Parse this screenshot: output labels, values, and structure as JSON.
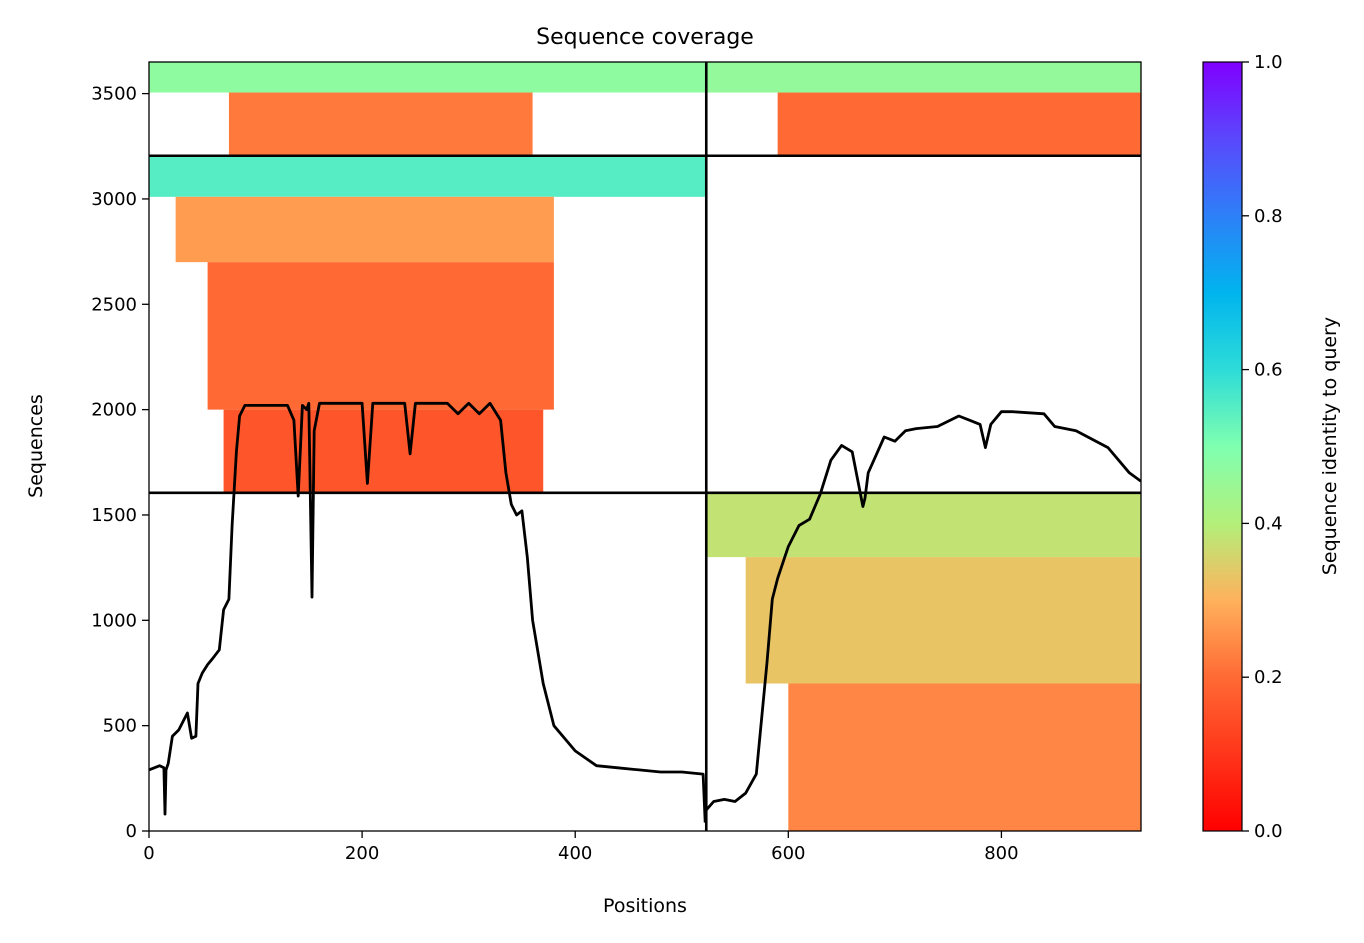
{
  "chart_data": {
    "type": "heatmap",
    "title": "Sequence coverage",
    "xlabel": "Positions",
    "ylabel": "Sequences",
    "xlim": [
      0,
      931
    ],
    "ylim": [
      0,
      3650
    ],
    "xticks": [
      0,
      200,
      400,
      600,
      800
    ],
    "yticks": [
      0,
      500,
      1000,
      1500,
      2000,
      2500,
      3000,
      3500
    ],
    "grid": false,
    "colorbar": {
      "label": "Sequence identity to query",
      "range": [
        0,
        1
      ],
      "ticks": [
        "0.0",
        "0.2",
        "0.4",
        "0.6",
        "0.8",
        "1.0"
      ],
      "colormap": "rainbow_r"
    },
    "chain_boundary_x": 523,
    "group_boundaries_y": [
      1605,
      3205
    ],
    "coverage_blocks": [
      {
        "x": [
          0,
          523
        ],
        "y": [
          3505,
          3650
        ],
        "identity": 0.47
      },
      {
        "x": [
          75,
          360
        ],
        "y": [
          3205,
          3505
        ],
        "identity": 0.22
      },
      {
        "x": [
          0,
          523
        ],
        "y": [
          3010,
          3205
        ],
        "identity": 0.55
      },
      {
        "x": [
          25,
          380
        ],
        "y": [
          2700,
          3010
        ],
        "identity": 0.27
      },
      {
        "x": [
          55,
          380
        ],
        "y": [
          2000,
          2700
        ],
        "identity": 0.2
      },
      {
        "x": [
          70,
          370
        ],
        "y": [
          1605,
          2000
        ],
        "identity": 0.16
      },
      {
        "x": [
          523,
          931
        ],
        "y": [
          3505,
          3650
        ],
        "identity": 0.46
      },
      {
        "x": [
          590,
          931
        ],
        "y": [
          3205,
          3505
        ],
        "identity": 0.2
      },
      {
        "x": [
          523,
          931
        ],
        "y": [
          1300,
          1605
        ],
        "identity": 0.38
      },
      {
        "x": [
          560,
          931
        ],
        "y": [
          700,
          1300
        ],
        "identity": 0.33
      },
      {
        "x": [
          600,
          931
        ],
        "y": [
          0,
          700
        ],
        "identity": 0.24
      }
    ],
    "series": [
      {
        "x": [
          0,
          5,
          10,
          14,
          15,
          16,
          18,
          22,
          28,
          32,
          36,
          40,
          44,
          46,
          50,
          55,
          60,
          66,
          70,
          75,
          78,
          82,
          85,
          90,
          100,
          110,
          120,
          130,
          136,
          140,
          144,
          148,
          150,
          153,
          155,
          160,
          170,
          190,
          200,
          205,
          210,
          220,
          230,
          240,
          245,
          250,
          260,
          280,
          290,
          300,
          310,
          320,
          330,
          335,
          340,
          345,
          350,
          355,
          360,
          370,
          380,
          400,
          420,
          440,
          460,
          480,
          500,
          520,
          522
        ],
        "values": [
          290,
          300,
          310,
          300,
          80,
          290,
          320,
          450,
          480,
          520,
          560,
          440,
          450,
          700,
          750,
          790,
          820,
          860,
          1050,
          1100,
          1450,
          1800,
          1970,
          2020,
          2020,
          2020,
          2020,
          2020,
          1950,
          1590,
          2020,
          2000,
          2030,
          1110,
          1900,
          2030,
          2030,
          2030,
          2030,
          1650,
          2030,
          2030,
          2030,
          2030,
          1790,
          2030,
          2030,
          2030,
          1980,
          2030,
          1980,
          2030,
          1950,
          1700,
          1550,
          1500,
          1520,
          1300,
          1000,
          700,
          500,
          380,
          310,
          300,
          290,
          280,
          280,
          270,
          40
        ]
      },
      {
        "x": [
          523,
          530,
          540,
          550,
          560,
          570,
          580,
          585,
          590,
          600,
          610,
          620,
          630,
          640,
          650,
          660,
          670,
          672,
          675,
          690,
          700,
          710,
          720,
          740,
          760,
          770,
          780,
          785,
          790,
          800,
          810,
          840,
          850,
          870,
          900,
          920,
          931
        ],
        "values": [
          100,
          140,
          150,
          140,
          180,
          270,
          800,
          1100,
          1200,
          1350,
          1450,
          1480,
          1600,
          1760,
          1830,
          1800,
          1540,
          1580,
          1700,
          1870,
          1850,
          1900,
          1910,
          1920,
          1970,
          1950,
          1930,
          1820,
          1930,
          1990,
          1990,
          1980,
          1920,
          1900,
          1820,
          1700,
          1660
        ]
      }
    ]
  }
}
